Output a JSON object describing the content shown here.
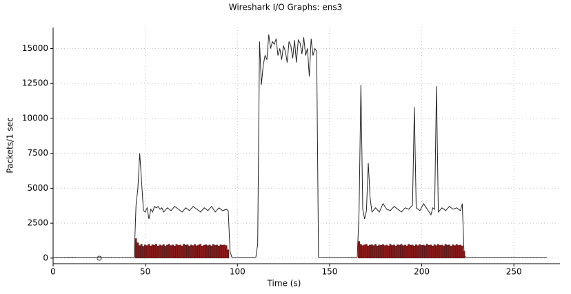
{
  "chart_data": {
    "type": "line",
    "title": "Wireshark I/O Graphs: ens3",
    "x_label": "Time (s)",
    "y_label": "Packets/1 sec",
    "xlim": [
      0,
      275
    ],
    "xticks": [
      0,
      50,
      100,
      150,
      200,
      250
    ],
    "ylim": [
      -400,
      16500
    ],
    "yticks": [
      0,
      2500,
      5000,
      7500,
      10000,
      12500,
      15000
    ],
    "grid": true,
    "series": [
      {
        "type": "line",
        "color": "#222222",
        "x": [
          0,
          10,
          20,
          30,
          40,
          44,
          45,
          46,
          47,
          48,
          49,
          50,
          51,
          52,
          53,
          54,
          55,
          56,
          57,
          58,
          59,
          60,
          62,
          64,
          66,
          68,
          70,
          72,
          74,
          76,
          78,
          80,
          82,
          84,
          86,
          88,
          90,
          92,
          94,
          95,
          96,
          97,
          100,
          105,
          110,
          111,
          112,
          113,
          114,
          115,
          116,
          117,
          118,
          119,
          120,
          121,
          122,
          123,
          124,
          125,
          126,
          127,
          128,
          129,
          130,
          131,
          132,
          133,
          134,
          135,
          136,
          137,
          138,
          139,
          140,
          141,
          142,
          143,
          144,
          150,
          160,
          165,
          166,
          167,
          168,
          169,
          170,
          171,
          172,
          173,
          175,
          177,
          179,
          181,
          183,
          185,
          187,
          189,
          191,
          193,
          195,
          196,
          197,
          199,
          201,
          203,
          205,
          206,
          207,
          208,
          209,
          211,
          213,
          215,
          217,
          219,
          221,
          222,
          223,
          224,
          230,
          240,
          250,
          260,
          268
        ],
        "values": [
          50,
          60,
          40,
          50,
          50,
          60,
          3800,
          5000,
          7500,
          5500,
          3400,
          3300,
          3600,
          2800,
          3500,
          3300,
          3700,
          3600,
          3700,
          3500,
          3600,
          3300,
          3600,
          3400,
          3700,
          3500,
          3300,
          3600,
          3400,
          3700,
          3500,
          3300,
          3600,
          3400,
          3700,
          3300,
          3600,
          3400,
          3500,
          3400,
          500,
          50,
          40,
          40,
          60,
          1000,
          15500,
          12400,
          13800,
          14500,
          14200,
          16000,
          15000,
          15500,
          15300,
          15700,
          14500,
          15000,
          14200,
          15200,
          14800,
          14000,
          15500,
          15200,
          14300,
          15600,
          14000,
          15600,
          15400,
          14600,
          15800,
          14500,
          15000,
          13000,
          15700,
          14500,
          15000,
          14800,
          50,
          40,
          50,
          60,
          3300,
          12400,
          3500,
          2800,
          3400,
          6800,
          4300,
          3300,
          3600,
          3300,
          3900,
          3500,
          3400,
          3700,
          3500,
          3300,
          3600,
          3500,
          3800,
          10800,
          3600,
          3400,
          3900,
          3500,
          3100,
          3600,
          3500,
          12300,
          3300,
          3600,
          3400,
          3700,
          3500,
          3600,
          3400,
          3900,
          200,
          60,
          50,
          40,
          50,
          40,
          50
        ]
      },
      {
        "type": "bar",
        "color": "#8b1a1a",
        "x": [
          45,
          46,
          47,
          48,
          49,
          50,
          51,
          52,
          53,
          54,
          55,
          56,
          57,
          58,
          59,
          60,
          61,
          62,
          63,
          64,
          65,
          66,
          67,
          68,
          69,
          70,
          71,
          72,
          73,
          74,
          75,
          76,
          77,
          78,
          79,
          80,
          81,
          82,
          83,
          84,
          85,
          86,
          87,
          88,
          89,
          90,
          91,
          92,
          93,
          94,
          95,
          166,
          167,
          168,
          169,
          170,
          171,
          172,
          173,
          174,
          175,
          176,
          177,
          178,
          179,
          180,
          181,
          182,
          183,
          184,
          185,
          186,
          187,
          188,
          189,
          190,
          191,
          192,
          193,
          194,
          195,
          196,
          197,
          198,
          199,
          200,
          201,
          202,
          203,
          204,
          205,
          206,
          207,
          208,
          209,
          210,
          211,
          212,
          213,
          214,
          215,
          216,
          217,
          218,
          219,
          220,
          221,
          222,
          223
        ],
        "values": [
          1400,
          1100,
          900,
          1000,
          850,
          950,
          900,
          1000,
          880,
          960,
          920,
          1000,
          870,
          950,
          900,
          980,
          860,
          940,
          1000,
          900,
          950,
          870,
          990,
          910,
          940,
          880,
          1000,
          920,
          960,
          870,
          950,
          900,
          980,
          890,
          940,
          1000,
          870,
          930,
          960,
          900,
          950,
          880,
          990,
          910,
          940,
          870,
          960,
          920,
          950,
          900,
          600,
          1200,
          1000,
          900,
          950,
          1000,
          880,
          940,
          960,
          900,
          1000,
          870,
          950,
          920,
          980,
          900,
          940,
          880,
          1000,
          910,
          950,
          870,
          960,
          930,
          990,
          900,
          940,
          880,
          1000,
          920,
          950,
          870,
          960,
          900,
          980,
          910,
          940,
          890,
          1000,
          920,
          950,
          870,
          960,
          900,
          980,
          910,
          940,
          880,
          1000,
          930,
          950,
          870,
          960,
          900,
          980,
          910,
          940,
          880,
          500
        ]
      }
    ]
  }
}
